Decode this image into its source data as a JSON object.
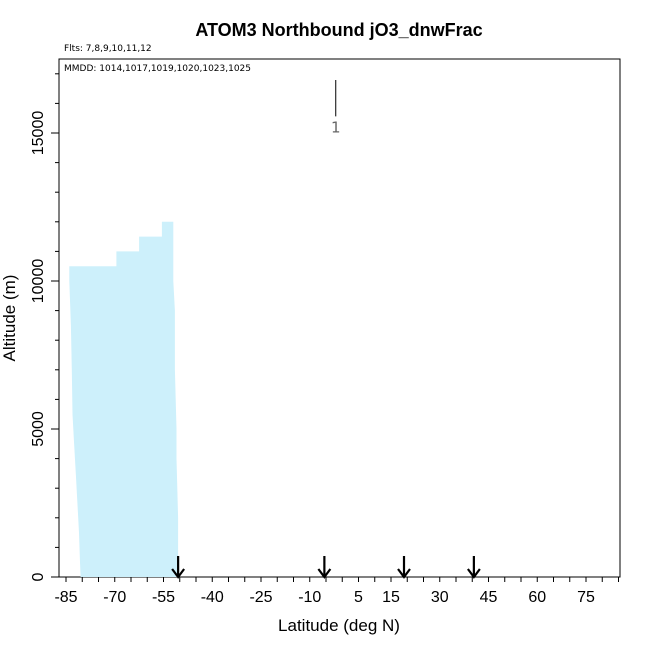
{
  "chart_data": {
    "type": "area",
    "title": "ATOM3 Northbound jO3_dnwFrac",
    "flights_note": "Flts: 7,8,9,10,11,12",
    "dates_note": "MMDD: 1014,1017,1019,1020,1023,1025",
    "xlabel": "Latitude (deg N)",
    "ylabel": "Altitude (m)",
    "xlim": [
      -85,
      85
    ],
    "ylim": [
      0,
      17500
    ],
    "x_ticks": [
      -85,
      -70,
      -55,
      -40,
      -25,
      -10,
      5,
      15,
      30,
      45,
      60,
      75
    ],
    "y_ticks": [
      0,
      5000,
      10000,
      15000
    ],
    "grid": false,
    "color_fill": "#cdf0fb",
    "series": [
      {
        "values_left_edge": [
          [
            -84,
            10000
          ],
          [
            -83.5,
            8500
          ],
          [
            -83.2,
            7000
          ],
          [
            -83,
            5500
          ],
          [
            -82.5,
            4500
          ],
          [
            -82,
            3500
          ],
          [
            -81.5,
            2500
          ],
          [
            -81,
            1500
          ],
          [
            -80.7,
            500
          ],
          [
            -80.5,
            0
          ]
        ],
        "values_top": [
          [
            -84,
            10500
          ],
          [
            -69.5,
            10500
          ],
          [
            -69.5,
            11000
          ],
          [
            -62.5,
            11000
          ],
          [
            -62.5,
            11500
          ],
          [
            -55.5,
            11500
          ],
          [
            -55.5,
            12000
          ],
          [
            -52,
            12000
          ]
        ],
        "values_right_edge": [
          [
            -52,
            12000
          ],
          [
            -52,
            10000
          ],
          [
            -51.5,
            9000
          ],
          [
            -51.5,
            7000
          ],
          [
            -51,
            5000
          ],
          [
            -51,
            4000
          ],
          [
            -50.5,
            2000
          ],
          [
            -50.5,
            0
          ]
        ]
      }
    ],
    "annotation_line": {
      "x": -2,
      "y_top": 17500,
      "y_bottom": 15900,
      "label": "1"
    },
    "arrows_x": [
      -50.5,
      -5.5,
      19,
      40.5
    ]
  },
  "colors": {
    "axis": "#000000",
    "fill": "#cdf0fb",
    "annotation": "#666666"
  }
}
